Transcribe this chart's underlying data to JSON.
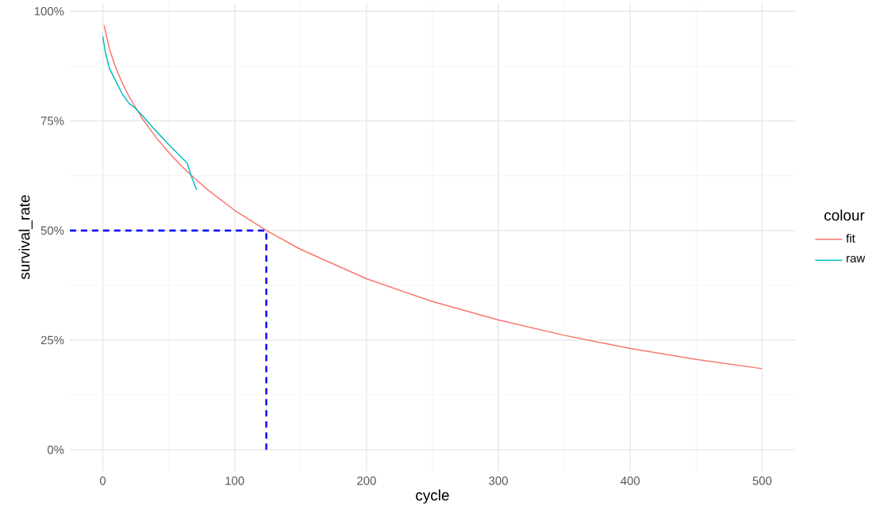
{
  "chart_data": {
    "type": "line",
    "xlabel": "cycle",
    "ylabel": "survival_rate",
    "legend_title": "colour",
    "xlim": [
      -25,
      525
    ],
    "ylim": [
      -4.85,
      101.85
    ],
    "xticks": [
      0,
      100,
      200,
      300,
      400,
      500
    ],
    "yticks": [
      {
        "value": 0,
        "label": "0%"
      },
      {
        "value": 25,
        "label": "25%"
      },
      {
        "value": 50,
        "label": "50%"
      },
      {
        "value": 75,
        "label": "75%"
      },
      {
        "value": 100,
        "label": "100%"
      }
    ],
    "grid": true,
    "legend": "right",
    "marker": "none",
    "series": [
      {
        "name": "fit",
        "color": "#f8766d",
        "x": [
          1,
          5,
          10,
          15,
          20,
          30,
          40,
          50,
          60,
          70,
          80,
          100,
          124,
          150,
          200,
          250,
          300,
          350,
          400,
          450,
          500
        ],
        "values": [
          96.8,
          91.4,
          87.0,
          83.5,
          80.5,
          75.5,
          71.4,
          67.8,
          64.6,
          61.8,
          59.2,
          54.6,
          50.0,
          45.7,
          39.0,
          33.8,
          29.6,
          26.1,
          23.1,
          20.6,
          18.5
        ]
      },
      {
        "name": "raw",
        "color": "#00bfc4",
        "x": [
          0,
          2,
          5,
          10,
          15,
          20,
          25,
          30,
          40,
          50,
          60,
          64,
          67,
          71
        ],
        "values": [
          94.3,
          90.5,
          87.0,
          84.0,
          81.0,
          79.0,
          77.8,
          76.2,
          72.8,
          69.6,
          66.6,
          65.4,
          62.5,
          59.3
        ]
      },
      {
        "color": "#0000ff",
        "line_style": "dashed",
        "x": [
          -25,
          124,
          124
        ],
        "values": [
          50,
          50,
          0
        ]
      }
    ]
  }
}
